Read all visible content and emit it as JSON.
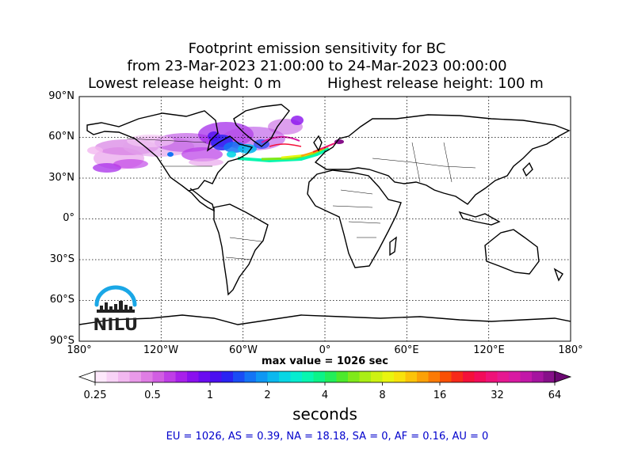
{
  "title": {
    "line1": "Footprint emission sensitivity for BC",
    "line2": "from 23-Mar-2023 21:00:00 to 24-Mar-2023 00:00:00",
    "lowest": "Lowest release height: 0 m",
    "highest": "Highest release height: 100 m"
  },
  "map": {
    "projection": "equirectangular",
    "lon_range": [
      -180,
      180
    ],
    "lat_range": [
      -90,
      90
    ],
    "grid_step_lon": 60,
    "grid_step_lat": 30,
    "lat_labels": [
      "90°N",
      "60°N",
      "30°N",
      "0°",
      "30°S",
      "60°S",
      "90°S"
    ],
    "lon_labels": [
      "180°",
      "120°W",
      "60°W",
      "0°",
      "60°E",
      "120°E",
      "180°"
    ]
  },
  "logo": {
    "text": "NILU",
    "color": "#1aa7e6"
  },
  "max_value": "max value = 1026 sec",
  "colorbar": {
    "scale": "log",
    "tick_labels": [
      "0.25",
      "0.5",
      "1",
      "2",
      "4",
      "8",
      "16",
      "32",
      "64"
    ],
    "tick_values": [
      0.25,
      0.5,
      1,
      2,
      4,
      8,
      16,
      32,
      64
    ],
    "colors": [
      "#fde8fb",
      "#f8d2f6",
      "#f2b8f0",
      "#e99ae9",
      "#df7de4",
      "#d15ee2",
      "#bf3ee6",
      "#a820ea",
      "#8a10ee",
      "#6a0cf0",
      "#4b0ff0",
      "#2a23f3",
      "#1a4cf5",
      "#1474f5",
      "#0f97f3",
      "#0bb8ee",
      "#08d6e4",
      "#06ecd0",
      "#07f6b0",
      "#0cf388",
      "#22ee5a",
      "#4ce92c",
      "#7fe91a",
      "#aaee15",
      "#cdf212",
      "#e9f50f",
      "#f8e20c",
      "#fbc309",
      "#fba107",
      "#fb7a05",
      "#f95004",
      "#f72a1a",
      "#f4113a",
      "#f20c5a",
      "#ee1278",
      "#e61891",
      "#d81aa2",
      "#c218a8",
      "#a5149f",
      "#861089"
    ],
    "label": "seconds"
  },
  "summary": "EU = 1026,  AS = 0.39,  NA = 18.18,  SA = 0,  AF = 0.16,  AU = 0"
}
